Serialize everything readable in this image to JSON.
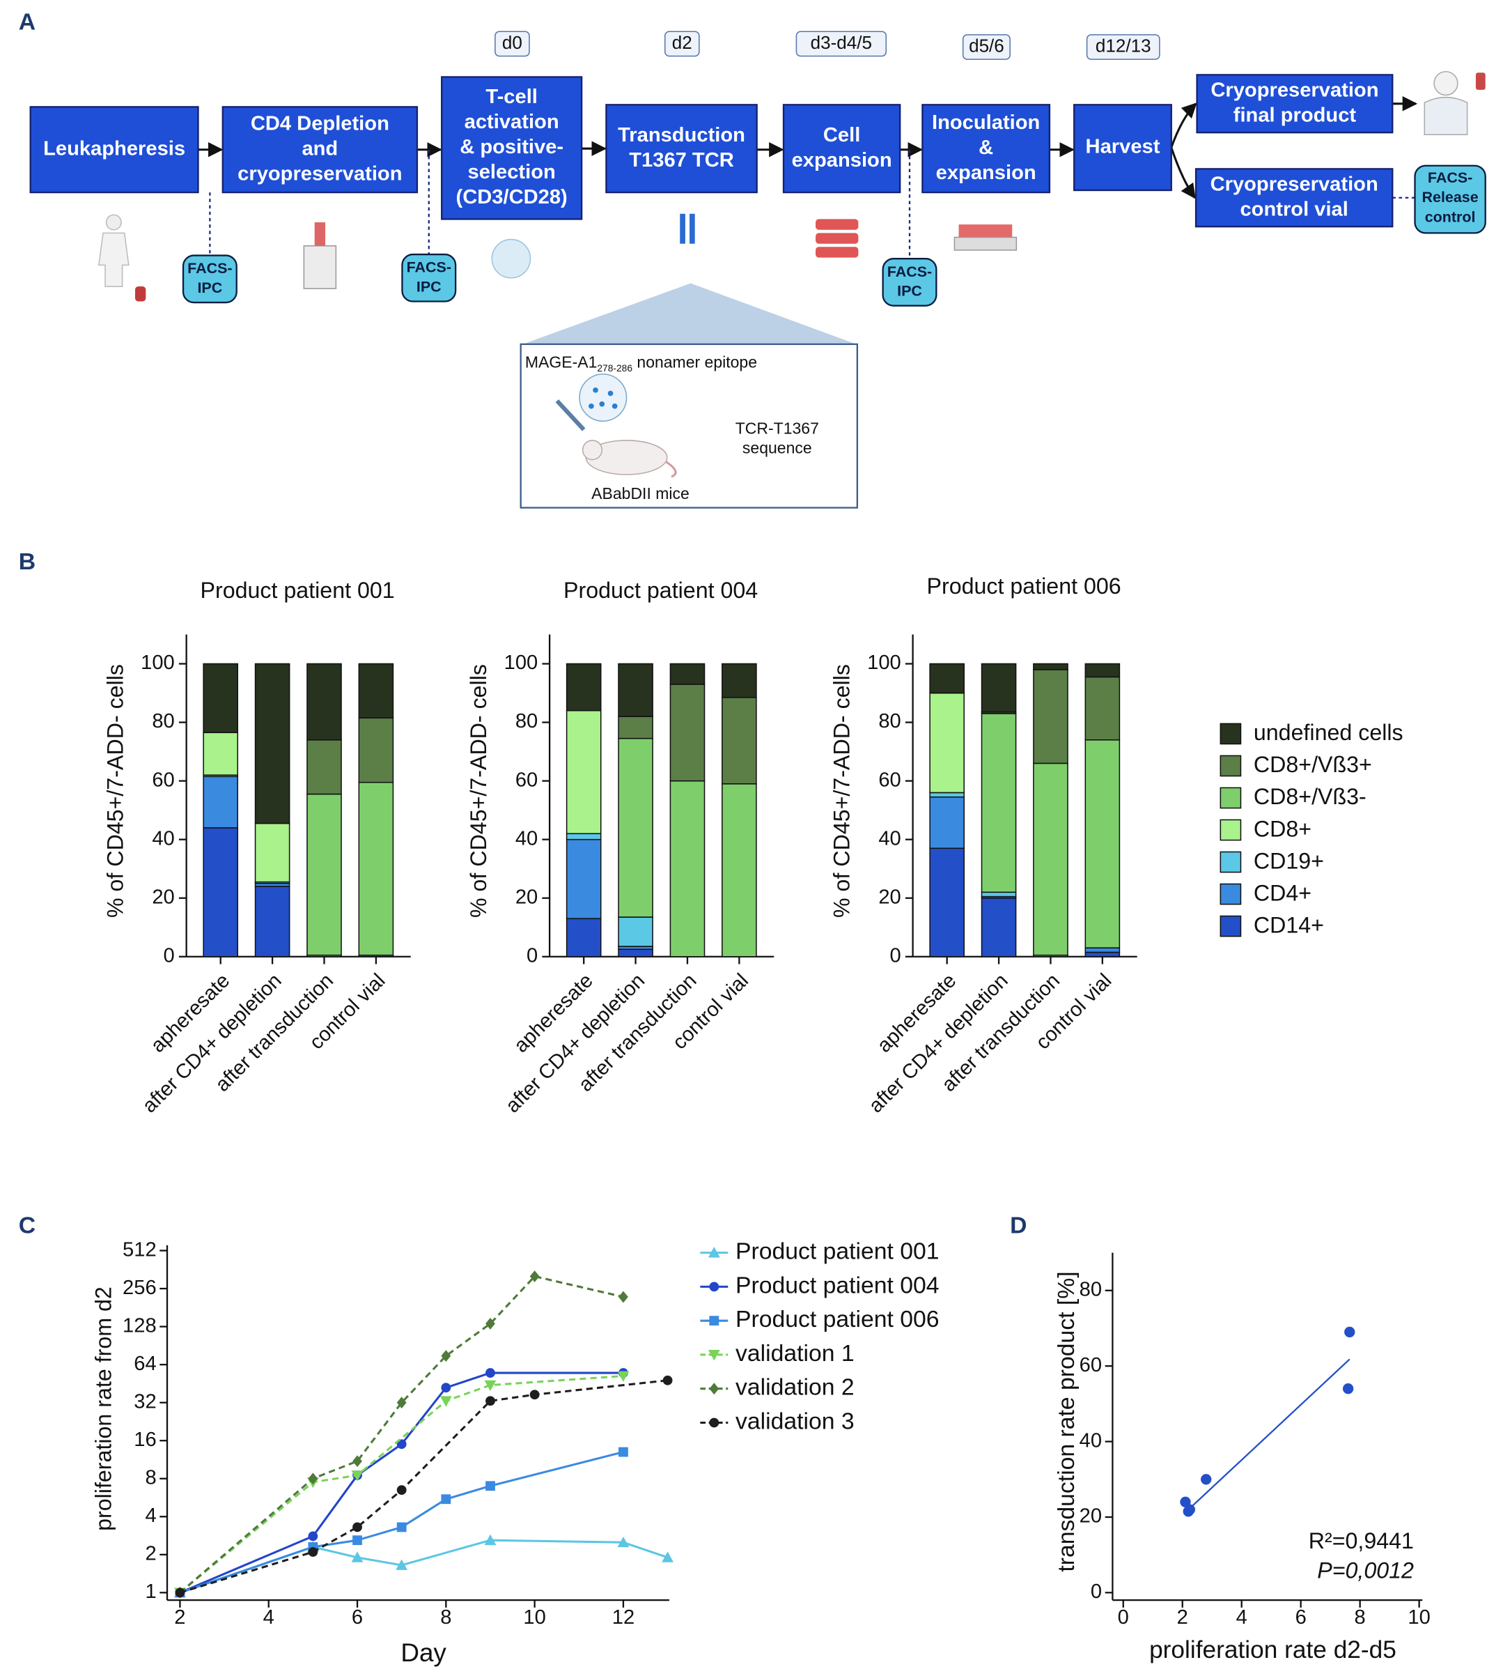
{
  "panel_labels": [
    "A",
    "B",
    "C",
    "D"
  ],
  "diagram": {
    "days": [
      "d0",
      "d2",
      "d3-d4/5",
      "d5/6",
      "d12/13"
    ],
    "boxes": [
      [
        "Leukapheresis"
      ],
      [
        "CD4 Depletion",
        "and",
        "cryopreservation"
      ],
      [
        "T-cell",
        "activation",
        "& positive-",
        "selection",
        "(CD3/CD28)"
      ],
      [
        "Transduction",
        "T1367 TCR"
      ],
      [
        "Cell",
        "expansion"
      ],
      [
        "Inoculation",
        "&",
        "expansion"
      ],
      [
        "Harvest"
      ],
      [
        "Cryopreservation",
        "final product"
      ],
      [
        "Cryopreservation",
        "control vial"
      ]
    ],
    "facs_ipc": [
      [
        "FACS-",
        "IPC"
      ],
      [
        "FACS-",
        "IPC"
      ],
      [
        "FACS-",
        "IPC"
      ]
    ],
    "facs_release": [
      "FACS-",
      "Release",
      "control"
    ],
    "inset": {
      "epitope": "MAGE-A1",
      "epitope_sub": "278-286",
      "epitope_rest": " nonamer epitope",
      "result": [
        "TCR-T1367",
        "sequence"
      ],
      "mice": "ABabDII mice"
    }
  },
  "chart_data": [
    {
      "type": "stacked_bar",
      "panels": [
        "Product patient 001",
        "Product patient 004",
        "Product patient 006"
      ],
      "ylabel": "% of CD45+/7-ADD- cells",
      "categories": [
        "apheresate",
        "after CD4+ depletion",
        "after transduction",
        "control vial"
      ],
      "ylim": [
        0,
        110
      ],
      "yticks": [
        0,
        20,
        40,
        60,
        80,
        100
      ],
      "legend": "right",
      "series": [
        {
          "name": "CD14+",
          "color": "#2350c8",
          "values": [
            [
              44,
              24,
              0,
              0
            ],
            [
              13,
              2.5,
              0,
              0
            ],
            [
              37,
              20,
              0,
              1.5
            ]
          ]
        },
        {
          "name": "CD4+",
          "color": "#3a8ae0",
          "values": [
            [
              17.5,
              1,
              0,
              0.5
            ],
            [
              27,
              1,
              0,
              0
            ],
            [
              17.5,
              0.5,
              0,
              1.5
            ]
          ]
        },
        {
          "name": "CD19+",
          "color": "#5bc8e6",
          "values": [
            [
              0.5,
              0.5,
              0.5,
              0
            ],
            [
              2,
              10,
              0,
              0
            ],
            [
              1.5,
              1.5,
              0.5,
              0
            ]
          ]
        },
        {
          "name": "CD8+",
          "color": "#a9f28c",
          "values": [
            [
              14.5,
              20,
              0,
              0
            ],
            [
              42,
              0,
              0,
              0
            ],
            [
              34,
              0,
              0,
              0
            ]
          ]
        },
        {
          "name": "CD8+/Vß3-",
          "color": "#7ecf6c",
          "values": [
            [
              0,
              0,
              55,
              59
            ],
            [
              0,
              61,
              60,
              59
            ],
            [
              0,
              61,
              65.5,
              71
            ]
          ]
        },
        {
          "name": "CD8+/Vß3+",
          "color": "#5b7f47",
          "values": [
            [
              0,
              0,
              18.5,
              22
            ],
            [
              0,
              7.5,
              33,
              29.5
            ],
            [
              0,
              0.5,
              32,
              21.5
            ]
          ]
        },
        {
          "name": "undefined cells",
          "color": "#27331f",
          "values": [
            [
              23.5,
              54.5,
              26,
              18.5
            ],
            [
              16,
              18,
              7,
              11.5
            ],
            [
              10,
              16.5,
              2,
              4.5
            ]
          ]
        }
      ]
    },
    {
      "type": "line",
      "xlabel": "Day",
      "ylabel": "proliferation rate from d2",
      "xlim": [
        2,
        13
      ],
      "xticks": [
        2,
        4,
        6,
        8,
        10,
        12
      ],
      "ylim": [
        1,
        512
      ],
      "yticks": [
        1,
        2,
        4,
        8,
        16,
        32,
        64,
        128,
        256,
        512
      ],
      "log_base": 2,
      "series": [
        {
          "name": "Product patient 001",
          "color": "#5cc6e3",
          "marker": "triangle",
          "dashed": false,
          "x": [
            2,
            5,
            6,
            7,
            9,
            12,
            13
          ],
          "values": [
            1,
            2.3,
            1.9,
            1.65,
            2.6,
            2.5,
            1.9
          ]
        },
        {
          "name": "Product patient 004",
          "color": "#2345c8",
          "marker": "circle",
          "dashed": false,
          "x": [
            2,
            5,
            6,
            7,
            8,
            9,
            12
          ],
          "values": [
            1,
            2.8,
            8.5,
            15,
            42,
            55,
            55
          ]
        },
        {
          "name": "Product patient 006",
          "color": "#3a8ae0",
          "marker": "square",
          "dashed": false,
          "x": [
            2,
            5,
            6,
            7,
            8,
            9,
            12
          ],
          "values": [
            1,
            2.3,
            2.6,
            3.3,
            5.5,
            7,
            13
          ]
        },
        {
          "name": "validation 1",
          "color": "#79d35a",
          "marker": "triangle-down",
          "dashed": true,
          "x": [
            2,
            5,
            6,
            8,
            9,
            12
          ],
          "values": [
            1,
            7.5,
            8.5,
            33,
            44,
            52
          ]
        },
        {
          "name": "validation 2",
          "color": "#4f7a3a",
          "marker": "diamond",
          "dashed": true,
          "x": [
            2,
            5,
            6,
            7,
            8,
            9,
            10,
            12
          ],
          "values": [
            1,
            8,
            11,
            32,
            75,
            135,
            320,
            220
          ]
        },
        {
          "name": "validation 3",
          "color": "#1e1e1e",
          "marker": "circle",
          "dashed": true,
          "x": [
            2,
            5,
            6,
            7,
            9,
            10,
            13
          ],
          "values": [
            1,
            2.1,
            3.3,
            6.5,
            33,
            37,
            48
          ]
        }
      ]
    },
    {
      "type": "scatter",
      "xlabel": "proliferation rate d2-d5",
      "ylabel": "transduction rate product [%]",
      "xlim": [
        0,
        10
      ],
      "xticks": [
        0,
        2,
        4,
        6,
        8,
        10
      ],
      "ylim": [
        0,
        90
      ],
      "yticks": [
        0,
        20,
        40,
        60,
        80
      ],
      "color": "#2350c8",
      "x": [
        2.1,
        2.2,
        2.25,
        2.8,
        7.65,
        7.6
      ],
      "values": [
        24,
        21.5,
        22,
        30,
        69,
        54
      ],
      "trend_line": {
        "x": [
          2.3,
          7.65
        ],
        "y": [
          22.7,
          61.8
        ]
      },
      "annotations": [
        "R²=0,9441",
        "P=0,0012"
      ]
    }
  ]
}
